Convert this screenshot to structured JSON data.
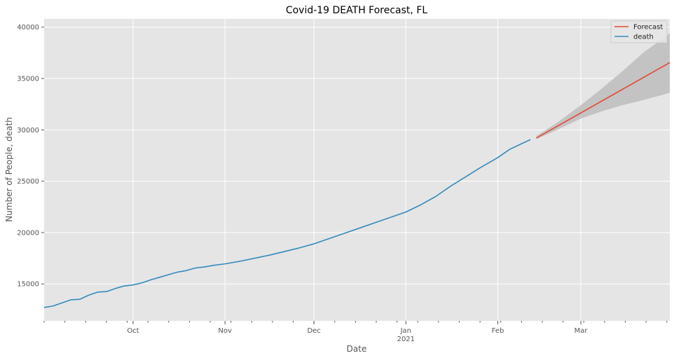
{
  "chart_data": {
    "type": "line",
    "title": "Covid-19 DEATH Forecast, FL",
    "xlabel": "Date",
    "ylabel": "Number of People, death",
    "xlim": [
      "2020-09-01",
      "2021-03-31"
    ],
    "ylim": [
      11400,
      40800
    ],
    "yticks": [
      15000,
      20000,
      25000,
      30000,
      35000,
      40000
    ],
    "xticks": [
      {
        "date": "2020-10-01",
        "label": "Oct",
        "sublabel": ""
      },
      {
        "date": "2020-11-01",
        "label": "Nov",
        "sublabel": ""
      },
      {
        "date": "2020-12-01",
        "label": "Dec",
        "sublabel": ""
      },
      {
        "date": "2021-01-01",
        "label": "Jan",
        "sublabel": "2021"
      },
      {
        "date": "2021-02-01",
        "label": "Feb",
        "sublabel": ""
      },
      {
        "date": "2021-03-01",
        "label": "Mar",
        "sublabel": ""
      }
    ],
    "grid": true,
    "legend": "top-right",
    "series": [
      {
        "name": "Forecast",
        "color": "#e24a33",
        "x": [
          "2021-02-14",
          "2021-03-31"
        ],
        "y": [
          29200,
          36550
        ]
      },
      {
        "name": "death",
        "color": "#348abd",
        "x": [
          "2020-09-01",
          "2020-09-04",
          "2020-09-07",
          "2020-09-10",
          "2020-09-13",
          "2020-09-16",
          "2020-09-19",
          "2020-09-22",
          "2020-09-25",
          "2020-09-28",
          "2020-10-01",
          "2020-10-04",
          "2020-10-07",
          "2020-10-10",
          "2020-10-13",
          "2020-10-16",
          "2020-10-19",
          "2020-10-22",
          "2020-10-25",
          "2020-10-28",
          "2020-11-01",
          "2020-11-06",
          "2020-11-11",
          "2020-11-16",
          "2020-11-21",
          "2020-11-26",
          "2020-12-01",
          "2020-12-06",
          "2020-12-11",
          "2020-12-16",
          "2020-12-21",
          "2020-12-26",
          "2021-01-01",
          "2021-01-06",
          "2021-01-11",
          "2021-01-16",
          "2021-01-21",
          "2021-01-26",
          "2021-02-01",
          "2021-02-05",
          "2021-02-09",
          "2021-02-12"
        ],
        "y": [
          12700,
          12850,
          13150,
          13450,
          13500,
          13900,
          14200,
          14250,
          14550,
          14800,
          14900,
          15100,
          15400,
          15650,
          15900,
          16150,
          16300,
          16550,
          16650,
          16800,
          16950,
          17200,
          17500,
          17800,
          18150,
          18500,
          18900,
          19400,
          19900,
          20400,
          20900,
          21400,
          22000,
          22700,
          23500,
          24500,
          25400,
          26300,
          27300,
          28100,
          28650,
          29050
        ]
      }
    ],
    "confidence_band": {
      "color": "#bdbdbd",
      "x": [
        "2021-02-14",
        "2021-02-21",
        "2021-03-01",
        "2021-03-08",
        "2021-03-15",
        "2021-03-22",
        "2021-03-31"
      ],
      "upper": [
        29400,
        30700,
        32400,
        34000,
        35700,
        37500,
        39400
      ],
      "lower": [
        29100,
        30000,
        31100,
        31800,
        32400,
        32900,
        33600
      ]
    }
  }
}
